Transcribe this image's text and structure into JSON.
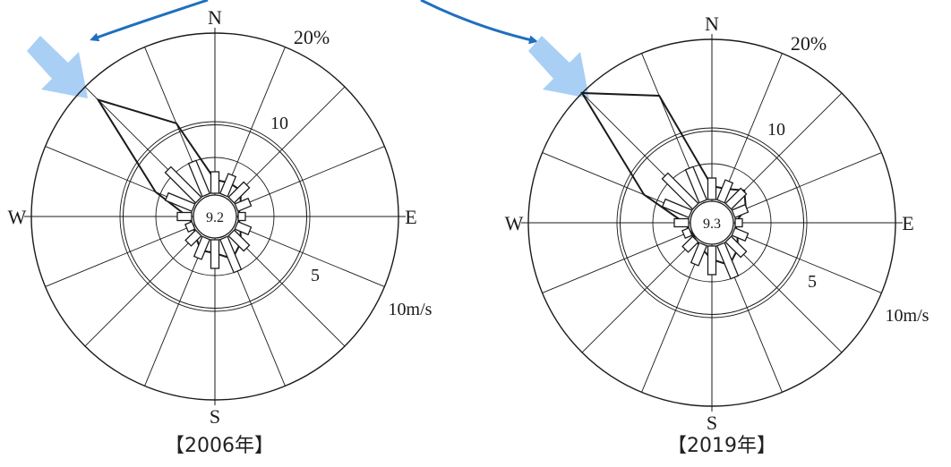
{
  "captions": [
    "【2006年】",
    "【2019年】"
  ],
  "chart_data": [
    {
      "type": "polar-area",
      "title": "",
      "center_label": "9.2",
      "caption": "【2006年】",
      "direction_labels": {
        "N": "N",
        "E": "E",
        "S": "S",
        "W": "W"
      },
      "frequency_ring_labels": [
        "10",
        "20%"
      ],
      "speed_ring_labels": [
        "5",
        "10m/s"
      ],
      "directions": [
        "N",
        "NNE",
        "NE",
        "ENE",
        "E",
        "ESE",
        "SE",
        "SSE",
        "S",
        "SSW",
        "SW",
        "WSW",
        "W",
        "WNW",
        "NW",
        "NNW"
      ],
      "frequency_percent": [
        4,
        4,
        4,
        3,
        2,
        3,
        4,
        5,
        4,
        4,
        3,
        2,
        3,
        7,
        18,
        11
      ],
      "mean_speed_ms": [
        3,
        3,
        3,
        2,
        1,
        2,
        3,
        5,
        4,
        3,
        2,
        1,
        2,
        4,
        6,
        5
      ]
    },
    {
      "type": "polar-area",
      "title": "",
      "center_label": "9.3",
      "caption": "【2019年】",
      "direction_labels": {
        "N": "N",
        "E": "E",
        "S": "S",
        "W": "W"
      },
      "frequency_ring_labels": [
        "10",
        "20%"
      ],
      "speed_ring_labels": [
        "5",
        "10m/s"
      ],
      "directions": [
        "N",
        "NNE",
        "NE",
        "ENE",
        "E",
        "ESE",
        "SE",
        "SSE",
        "S",
        "SSW",
        "SW",
        "WSW",
        "W",
        "WNW",
        "NW",
        "NNW"
      ],
      "frequency_percent": [
        4,
        4,
        5,
        4,
        2,
        3,
        4,
        5,
        4,
        3,
        2,
        2,
        3,
        8,
        20,
        15
      ],
      "mean_speed_ms": [
        3,
        3,
        3,
        2,
        1,
        2,
        3,
        5,
        4,
        3,
        2,
        1,
        2,
        4,
        6,
        5
      ]
    }
  ],
  "colors": {
    "ink": "#1a1a1a",
    "arrow": "#1f6fbf",
    "highlight_arrow": "#a9cff5"
  }
}
